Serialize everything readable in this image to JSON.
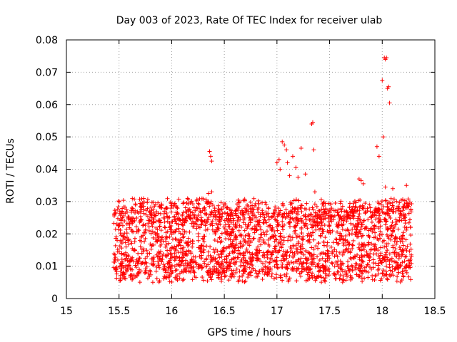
{
  "chart_data": {
    "type": "scatter",
    "title": "Day 003 of 2023, Rate Of TEC Index for receiver ulab",
    "xlabel": "GPS time / hours",
    "ylabel": "ROTI / TECUs",
    "xlim": [
      15,
      18.5
    ],
    "ylim": [
      0,
      0.08
    ],
    "xticks": [
      15,
      15.5,
      16,
      16.5,
      17,
      17.5,
      18,
      18.5
    ],
    "xtick_labels": [
      "15",
      "15.5",
      "16",
      "16.5",
      "17",
      "17.5",
      "18",
      "18.5"
    ],
    "yticks": [
      0,
      0.01,
      0.02,
      0.03,
      0.04,
      0.05,
      0.06,
      0.07,
      0.08
    ],
    "ytick_labels": [
      "0",
      "0.01",
      "0.02",
      "0.03",
      "0.04",
      "0.05",
      "0.06",
      "0.07",
      "0.08"
    ],
    "grid": true,
    "marker": "+",
    "color": "#ff0000",
    "series": [
      {
        "name": "ROTI",
        "x_range": [
          15.45,
          18.28
        ],
        "generator": {
          "seed": 20230103,
          "count": 2600,
          "base_low": 0.005,
          "base_high": 0.031
        },
        "spikes": [
          {
            "x": 16.36,
            "y": 0.0455
          },
          {
            "x": 16.37,
            "y": 0.044
          },
          {
            "x": 16.38,
            "y": 0.0425
          },
          {
            "x": 16.38,
            "y": 0.033
          },
          {
            "x": 16.35,
            "y": 0.0325
          },
          {
            "x": 17.0,
            "y": 0.042
          },
          {
            "x": 17.02,
            "y": 0.043
          },
          {
            "x": 17.03,
            "y": 0.04
          },
          {
            "x": 17.05,
            "y": 0.0485
          },
          {
            "x": 17.07,
            "y": 0.0475
          },
          {
            "x": 17.09,
            "y": 0.046
          },
          {
            "x": 17.1,
            "y": 0.042
          },
          {
            "x": 17.12,
            "y": 0.038
          },
          {
            "x": 17.15,
            "y": 0.044
          },
          {
            "x": 17.18,
            "y": 0.0405
          },
          {
            "x": 17.2,
            "y": 0.0375
          },
          {
            "x": 17.23,
            "y": 0.0465
          },
          {
            "x": 17.27,
            "y": 0.0385
          },
          {
            "x": 17.33,
            "y": 0.054
          },
          {
            "x": 17.34,
            "y": 0.0545
          },
          {
            "x": 17.35,
            "y": 0.046
          },
          {
            "x": 17.36,
            "y": 0.033
          },
          {
            "x": 17.78,
            "y": 0.037
          },
          {
            "x": 17.8,
            "y": 0.0365
          },
          {
            "x": 17.82,
            "y": 0.0355
          },
          {
            "x": 17.95,
            "y": 0.047
          },
          {
            "x": 17.97,
            "y": 0.044
          },
          {
            "x": 18.0,
            "y": 0.0675
          },
          {
            "x": 18.01,
            "y": 0.05
          },
          {
            "x": 18.02,
            "y": 0.0745
          },
          {
            "x": 18.03,
            "y": 0.074
          },
          {
            "x": 18.04,
            "y": 0.0745
          },
          {
            "x": 18.05,
            "y": 0.065
          },
          {
            "x": 18.06,
            "y": 0.0655
          },
          {
            "x": 18.07,
            "y": 0.0605
          },
          {
            "x": 18.03,
            "y": 0.0345
          },
          {
            "x": 18.1,
            "y": 0.034
          },
          {
            "x": 18.23,
            "y": 0.035
          }
        ]
      }
    ]
  }
}
